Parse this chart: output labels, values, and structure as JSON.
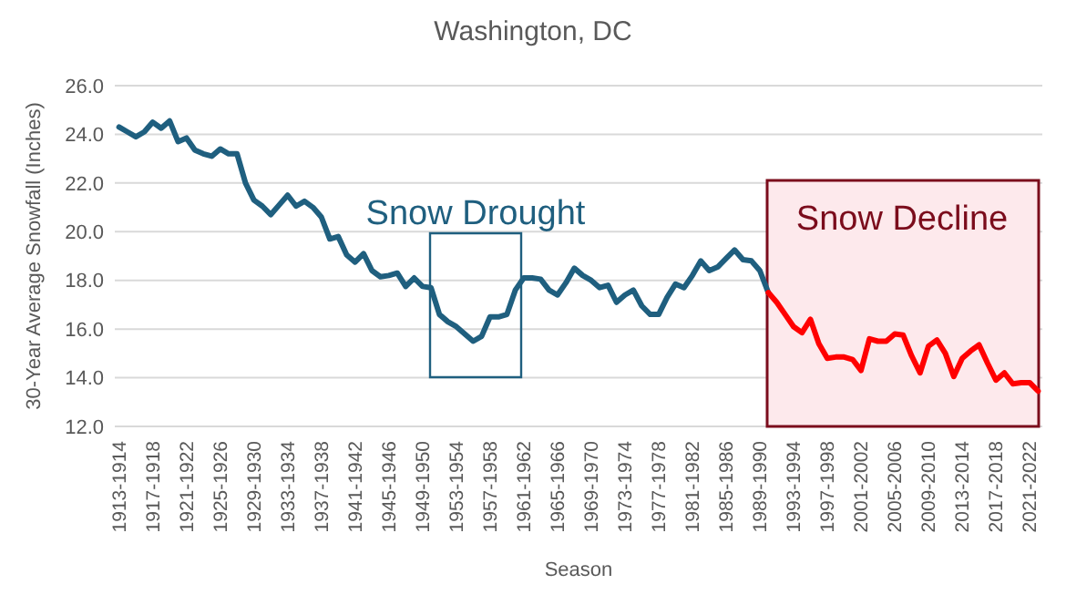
{
  "chart_data": {
    "type": "line",
    "title": "Washington, DC",
    "xlabel": "Season",
    "ylabel": "30-Year Average Snowfall (Inches)",
    "categories": [
      "1913-1914",
      null,
      null,
      null,
      "1917-1918",
      null,
      null,
      null,
      "1921-1922",
      null,
      null,
      null,
      "1925-1926",
      null,
      null,
      null,
      "1929-1930",
      null,
      null,
      null,
      "1933-1934",
      null,
      null,
      null,
      "1937-1938",
      null,
      null,
      null,
      "1941-1942",
      null,
      null,
      null,
      "1945-1946",
      null,
      null,
      null,
      "1949-1950",
      null,
      null,
      null,
      "1953-1954",
      null,
      null,
      null,
      "1957-1958",
      null,
      null,
      null,
      "1961-1962",
      null,
      null,
      null,
      "1965-1966",
      null,
      null,
      null,
      "1969-1970",
      null,
      null,
      null,
      "1973-1974",
      null,
      null,
      null,
      "1977-1978",
      null,
      null,
      null,
      "1981-1982",
      null,
      null,
      null,
      "1985-1986",
      null,
      null,
      null,
      "1989-1990",
      null,
      null,
      null,
      "1993-1994",
      null,
      null,
      null,
      "1997-1998",
      null,
      null,
      null,
      "2001-2002",
      null,
      null,
      null,
      "2005-2006",
      null,
      null,
      null,
      "2009-2010",
      null,
      null,
      null,
      "2013-2014",
      null,
      null,
      null,
      "2017-2018",
      null,
      null,
      null,
      "2021-2022",
      null
    ],
    "series": [
      {
        "color": "#1f5f7f",
        "values": [
          24.3,
          24.1,
          23.9,
          24.1,
          24.5,
          24.25,
          24.55,
          23.7,
          23.85,
          23.35,
          23.2,
          23.1,
          23.4,
          23.2,
          23.2,
          22.0,
          21.3,
          21.05,
          20.7,
          21.1,
          21.5,
          21.05,
          21.25,
          21.0,
          20.6,
          19.7,
          19.8,
          19.05,
          18.75,
          19.1,
          18.4,
          18.15,
          18.2,
          18.3,
          17.75,
          18.1,
          17.75,
          17.7,
          16.6,
          16.3,
          16.1,
          15.8,
          15.5,
          15.7,
          16.5,
          16.5,
          16.6,
          17.6,
          18.1,
          18.1,
          18.05,
          17.6,
          17.4,
          17.9,
          18.5,
          18.2,
          18.0,
          17.7,
          17.8,
          17.1,
          17.4,
          17.6,
          16.95,
          16.6,
          16.6,
          17.3,
          17.85,
          17.7,
          18.2,
          18.8,
          18.4,
          18.55,
          18.9,
          19.25,
          18.85,
          18.8,
          18.4,
          17.5,
          null,
          null,
          null,
          null,
          null,
          null,
          null,
          null,
          null,
          null,
          null,
          null,
          null,
          null,
          null,
          null,
          null,
          null,
          null,
          null,
          null,
          null,
          null,
          null,
          null,
          null,
          null,
          null,
          null,
          null,
          null,
          null
        ]
      },
      {
        "color": "#ff0000",
        "values": [
          null,
          null,
          null,
          null,
          null,
          null,
          null,
          null,
          null,
          null,
          null,
          null,
          null,
          null,
          null,
          null,
          null,
          null,
          null,
          null,
          null,
          null,
          null,
          null,
          null,
          null,
          null,
          null,
          null,
          null,
          null,
          null,
          null,
          null,
          null,
          null,
          null,
          null,
          null,
          null,
          null,
          null,
          null,
          null,
          null,
          null,
          null,
          null,
          null,
          null,
          null,
          null,
          null,
          null,
          null,
          null,
          null,
          null,
          null,
          null,
          null,
          null,
          null,
          null,
          null,
          null,
          null,
          null,
          null,
          null,
          null,
          null,
          null,
          null,
          null,
          null,
          null,
          17.5,
          17.1,
          16.6,
          16.1,
          15.85,
          16.4,
          15.4,
          14.8,
          14.85,
          14.85,
          14.75,
          14.3,
          15.6,
          15.5,
          15.5,
          15.8,
          15.75,
          14.9,
          14.2,
          15.3,
          15.55,
          15.0,
          14.05,
          14.8,
          15.1,
          15.35,
          14.6,
          13.9,
          14.2,
          13.75,
          13.8,
          13.8,
          13.45
        ]
      }
    ],
    "ylim": [
      12,
      26
    ],
    "yticks": [
      {
        "value": 12,
        "label": "12.0"
      },
      {
        "value": 14,
        "label": "14.0"
      },
      {
        "value": 16,
        "label": "16.0"
      },
      {
        "value": 18,
        "label": "18.0"
      },
      {
        "value": 20,
        "label": "20.0"
      },
      {
        "value": 22,
        "label": "22.0"
      },
      {
        "value": 24,
        "label": "24.0"
      },
      {
        "value": 26,
        "label": "26.0"
      }
    ],
    "grid": "y",
    "marker": "none",
    "line_style": "solid",
    "annotations": [
      "Snow Drought",
      "Snow Decline"
    ]
  }
}
